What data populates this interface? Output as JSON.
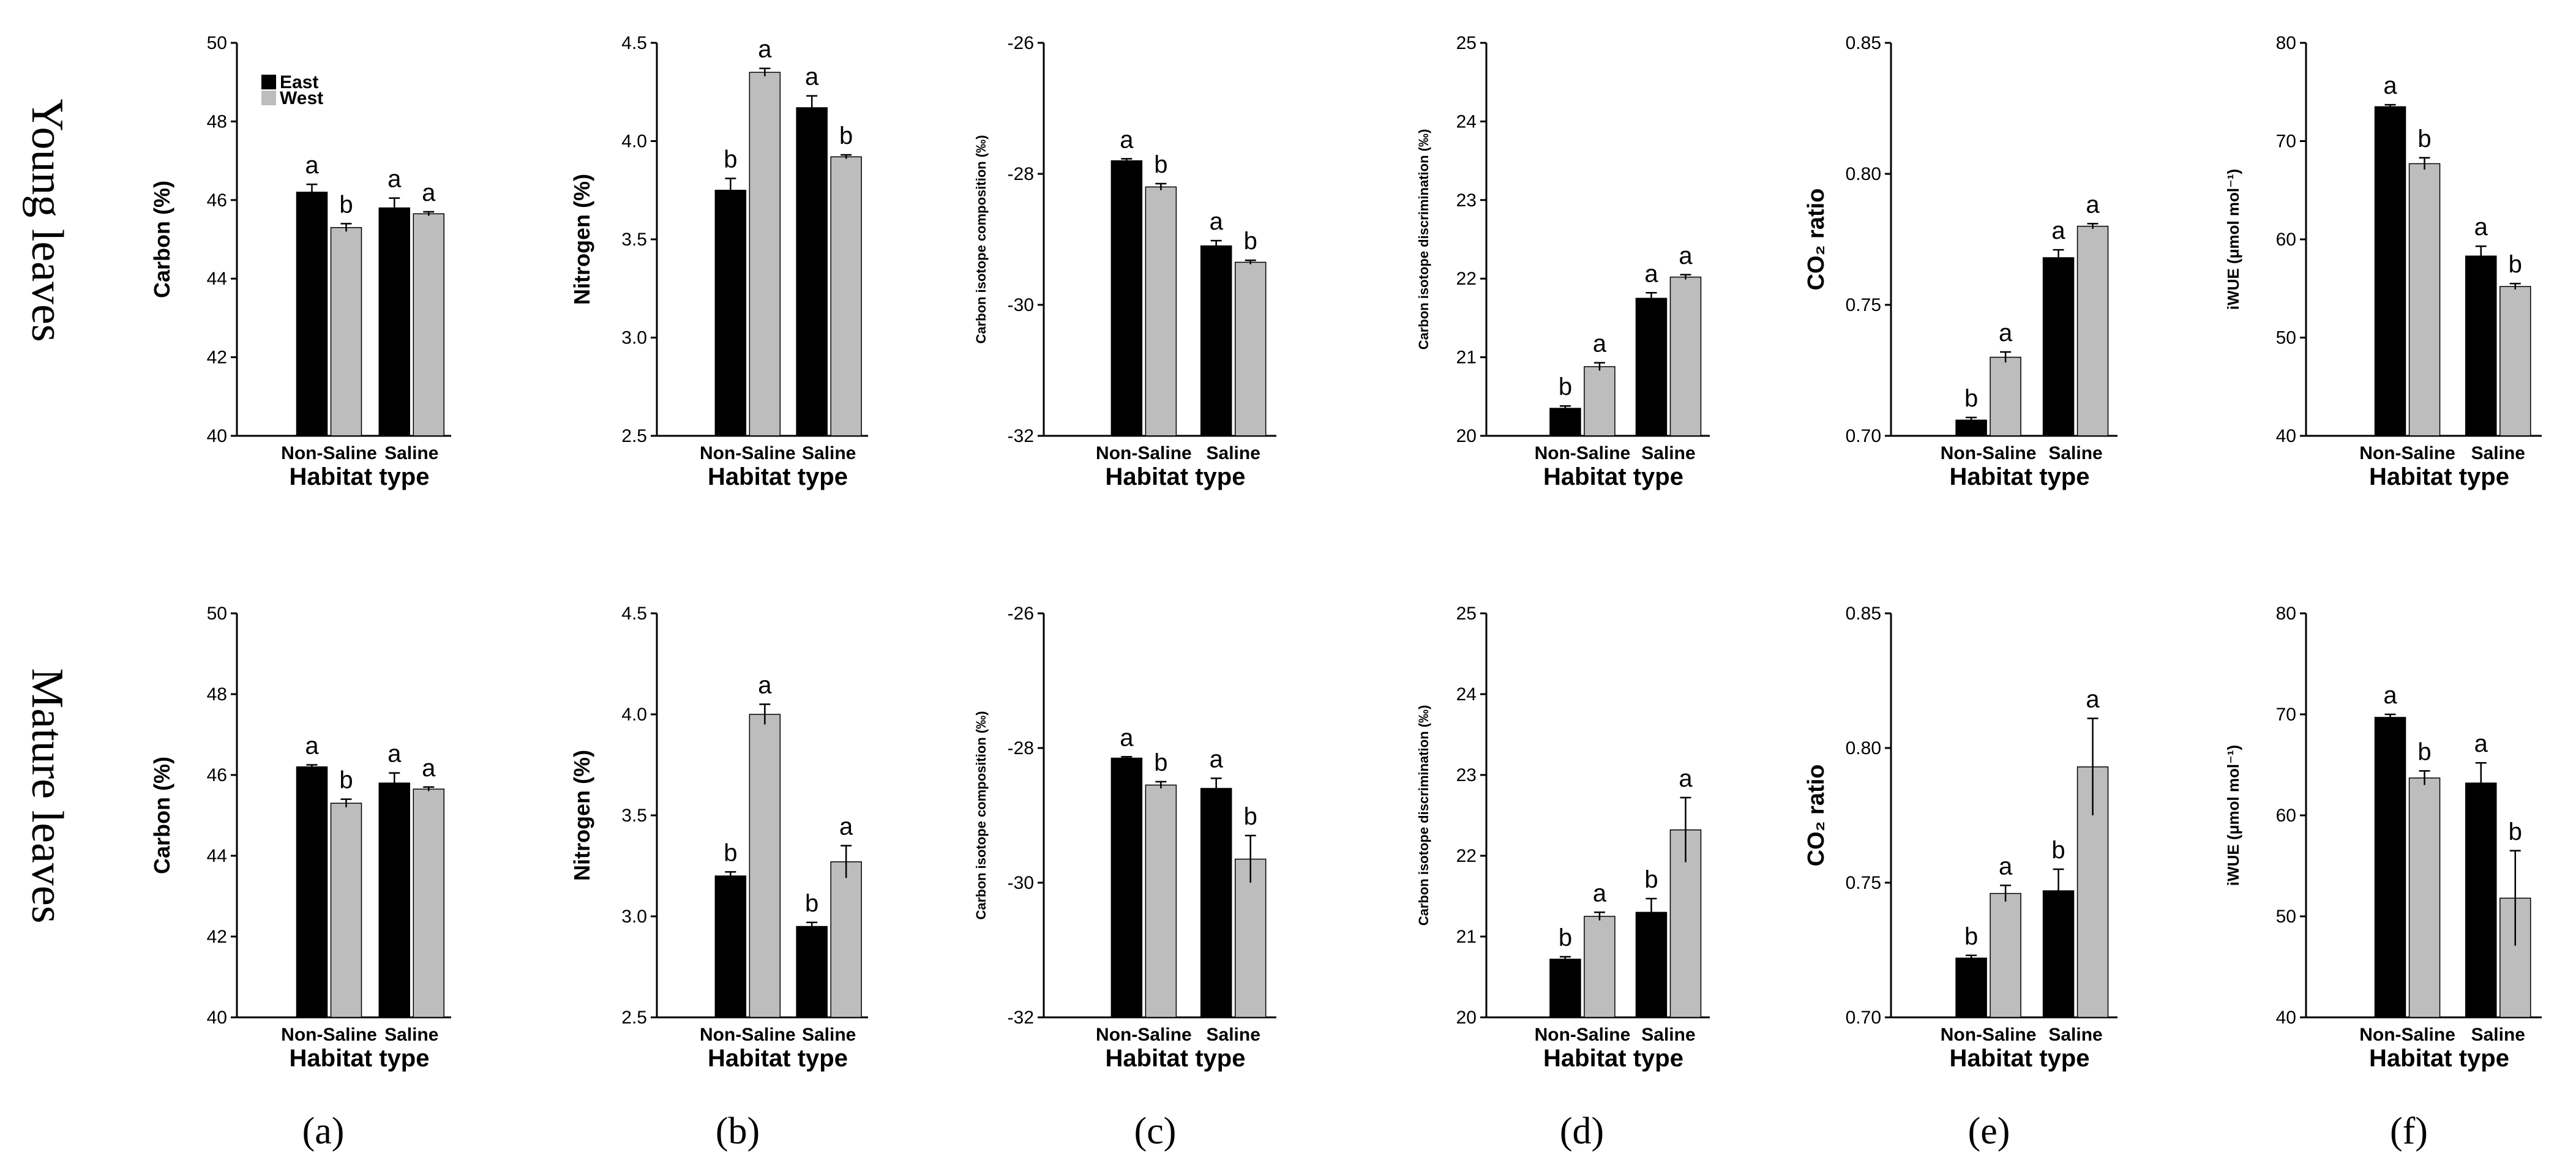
{
  "figure": {
    "row_labels": [
      "Young leaves",
      "Mature leaves"
    ],
    "panel_labels": [
      "(a)",
      "(b)",
      "(c)",
      "(d)",
      "(e)",
      "(f)"
    ],
    "legend": {
      "east": "East",
      "west": "West"
    },
    "colors": {
      "east": "#000000",
      "west": "#bdbdbd",
      "axis": "#000000"
    }
  },
  "chart_data": [
    {
      "type": "bar",
      "row": "young",
      "panel": "(a)",
      "ylabel": "Carbon (%)",
      "xlabel": "Habitat type",
      "ylim": [
        40,
        50
      ],
      "yticks": [
        40,
        42,
        44,
        46,
        48,
        50
      ],
      "categories": [
        "Non-Saline",
        "Saline"
      ],
      "legend": true,
      "series": [
        {
          "name": "East",
          "values": [
            46.2,
            45.8
          ],
          "errors": [
            0.2,
            0.25
          ],
          "letters": [
            "a",
            "a"
          ]
        },
        {
          "name": "West",
          "values": [
            45.3,
            45.65
          ],
          "errors": [
            0.1,
            0.05
          ],
          "letters": [
            "b",
            "a"
          ]
        }
      ]
    },
    {
      "type": "bar",
      "row": "young",
      "panel": "(b)",
      "ylabel": "Nitrogen (%)",
      "xlabel": "Habitat type",
      "ylim": [
        2.5,
        4.5
      ],
      "yticks": [
        2.5,
        3.0,
        3.5,
        4.0,
        4.5
      ],
      "categories": [
        "Non-Saline",
        "Saline"
      ],
      "series": [
        {
          "name": "East",
          "values": [
            3.75,
            4.17
          ],
          "errors": [
            0.06,
            0.06
          ],
          "letters": [
            "b",
            "a"
          ]
        },
        {
          "name": "West",
          "values": [
            4.35,
            3.92
          ],
          "errors": [
            0.02,
            0.01
          ],
          "letters": [
            "a",
            "b"
          ]
        }
      ]
    },
    {
      "type": "bar",
      "row": "young",
      "panel": "(c)",
      "ylabel": "Carbon isotope composition (‰)",
      "xlabel": "Habitat type",
      "ylim": [
        -32,
        -26
      ],
      "yticks": [
        -32,
        -30,
        -28,
        -26
      ],
      "categories": [
        "Non-Saline",
        "Saline"
      ],
      "series": [
        {
          "name": "East",
          "values": [
            -27.8,
            -29.1
          ],
          "errors": [
            0.03,
            0.08
          ],
          "letters": [
            "a",
            "a"
          ]
        },
        {
          "name": "West",
          "values": [
            -28.2,
            -29.35
          ],
          "errors": [
            0.05,
            0.03
          ],
          "letters": [
            "b",
            "b"
          ]
        }
      ]
    },
    {
      "type": "bar",
      "row": "young",
      "panel": "(d)",
      "ylabel": "Carbon isotope discrimination (‰)",
      "xlabel": "Habitat type",
      "ylim": [
        20,
        25
      ],
      "yticks": [
        20,
        21,
        22,
        23,
        24,
        25
      ],
      "categories": [
        "Non-Saline",
        "Saline"
      ],
      "series": [
        {
          "name": "East",
          "values": [
            20.35,
            21.75
          ],
          "errors": [
            0.03,
            0.07
          ],
          "letters": [
            "b",
            "a"
          ]
        },
        {
          "name": "West",
          "values": [
            20.88,
            22.02
          ],
          "errors": [
            0.05,
            0.03
          ],
          "letters": [
            "a",
            "a"
          ]
        }
      ]
    },
    {
      "type": "bar",
      "row": "young",
      "panel": "(e)",
      "ylabel": "CO₂ ratio",
      "xlabel": "Habitat type",
      "ylim": [
        0.7,
        0.85
      ],
      "yticks": [
        0.7,
        0.75,
        0.8,
        0.85
      ],
      "categories": [
        "Non-Saline",
        "Saline"
      ],
      "series": [
        {
          "name": "East",
          "values": [
            0.706,
            0.768
          ],
          "errors": [
            0.001,
            0.003
          ],
          "letters": [
            "b",
            "a"
          ]
        },
        {
          "name": "West",
          "values": [
            0.73,
            0.78
          ],
          "errors": [
            0.002,
            0.001
          ],
          "letters": [
            "a",
            "a"
          ]
        }
      ]
    },
    {
      "type": "bar",
      "row": "young",
      "panel": "(f)",
      "ylabel": "iWUE (μmol mol⁻¹)",
      "xlabel": "Habitat type",
      "ylim": [
        40,
        80
      ],
      "yticks": [
        40,
        50,
        60,
        70,
        80
      ],
      "categories": [
        "Non-Saline",
        "Saline"
      ],
      "series": [
        {
          "name": "East",
          "values": [
            73.5,
            58.3
          ],
          "errors": [
            0.2,
            1.0
          ],
          "letters": [
            "a",
            "a"
          ]
        },
        {
          "name": "West",
          "values": [
            67.7,
            55.2
          ],
          "errors": [
            0.6,
            0.3
          ],
          "letters": [
            "b",
            "b"
          ]
        }
      ]
    },
    {
      "type": "bar",
      "row": "mature",
      "panel": "(a)",
      "ylabel": "Carbon (%)",
      "xlabel": "Habitat type",
      "ylim": [
        40,
        50
      ],
      "yticks": [
        40,
        42,
        44,
        46,
        48,
        50
      ],
      "categories": [
        "Non-Saline",
        "Saline"
      ],
      "series": [
        {
          "name": "East",
          "values": [
            46.2,
            45.8
          ],
          "errors": [
            0.05,
            0.25
          ],
          "letters": [
            "a",
            "a"
          ]
        },
        {
          "name": "West",
          "values": [
            45.3,
            45.65
          ],
          "errors": [
            0.1,
            0.05
          ],
          "letters": [
            "b",
            "a"
          ]
        }
      ]
    },
    {
      "type": "bar",
      "row": "mature",
      "panel": "(b)",
      "ylabel": "Nitrogen (%)",
      "xlabel": "Habitat type",
      "ylim": [
        2.5,
        4.5
      ],
      "yticks": [
        2.5,
        3.0,
        3.5,
        4.0,
        4.5
      ],
      "categories": [
        "Non-Saline",
        "Saline"
      ],
      "series": [
        {
          "name": "East",
          "values": [
            3.2,
            2.95
          ],
          "errors": [
            0.02,
            0.02
          ],
          "letters": [
            "b",
            "b"
          ]
        },
        {
          "name": "West",
          "values": [
            4.0,
            3.27
          ],
          "errors": [
            0.05,
            0.08
          ],
          "letters": [
            "a",
            "a"
          ]
        }
      ]
    },
    {
      "type": "bar",
      "row": "mature",
      "panel": "(c)",
      "ylabel": "Carbon isotope composition (‰)",
      "xlabel": "Habitat type",
      "ylim": [
        -32,
        -26
      ],
      "yticks": [
        -32,
        -30,
        -28,
        -26
      ],
      "categories": [
        "Non-Saline",
        "Saline"
      ],
      "series": [
        {
          "name": "East",
          "values": [
            -28.15,
            -28.6
          ],
          "errors": [
            0.02,
            0.15
          ],
          "letters": [
            "a",
            "a"
          ]
        },
        {
          "name": "West",
          "values": [
            -28.55,
            -29.65
          ],
          "errors": [
            0.05,
            0.35
          ],
          "letters": [
            "b",
            "b"
          ]
        }
      ]
    },
    {
      "type": "bar",
      "row": "mature",
      "panel": "(d)",
      "ylabel": "Carbon isotope discrimination (‰)",
      "xlabel": "Habitat type",
      "ylim": [
        20,
        25
      ],
      "yticks": [
        20,
        21,
        22,
        23,
        24,
        25
      ],
      "categories": [
        "Non-Saline",
        "Saline"
      ],
      "series": [
        {
          "name": "East",
          "values": [
            20.72,
            21.3
          ],
          "errors": [
            0.03,
            0.17
          ],
          "letters": [
            "b",
            "b"
          ]
        },
        {
          "name": "West",
          "values": [
            21.25,
            22.32
          ],
          "errors": [
            0.05,
            0.4
          ],
          "letters": [
            "a",
            "a"
          ]
        }
      ]
    },
    {
      "type": "bar",
      "row": "mature",
      "panel": "(e)",
      "ylabel": "CO₂ ratio",
      "xlabel": "Habitat type",
      "ylim": [
        0.7,
        0.85
      ],
      "yticks": [
        0.7,
        0.75,
        0.8,
        0.85
      ],
      "categories": [
        "Non-Saline",
        "Saline"
      ],
      "series": [
        {
          "name": "East",
          "values": [
            0.722,
            0.747
          ],
          "errors": [
            0.001,
            0.008
          ],
          "letters": [
            "b",
            "b"
          ]
        },
        {
          "name": "West",
          "values": [
            0.746,
            0.793
          ],
          "errors": [
            0.003,
            0.018
          ],
          "letters": [
            "a",
            "a"
          ]
        }
      ]
    },
    {
      "type": "bar",
      "row": "mature",
      "panel": "(f)",
      "ylabel": "iWUE (μmol mol⁻¹)",
      "xlabel": "Habitat type",
      "ylim": [
        40,
        80
      ],
      "yticks": [
        40,
        50,
        60,
        70,
        80
      ],
      "categories": [
        "Non-Saline",
        "Saline"
      ],
      "series": [
        {
          "name": "East",
          "values": [
            69.7,
            63.2
          ],
          "errors": [
            0.3,
            2.0
          ],
          "letters": [
            "a",
            "a"
          ]
        },
        {
          "name": "West",
          "values": [
            63.7,
            51.8
          ],
          "errors": [
            0.7,
            4.7
          ],
          "letters": [
            "b",
            "b"
          ]
        }
      ]
    }
  ]
}
